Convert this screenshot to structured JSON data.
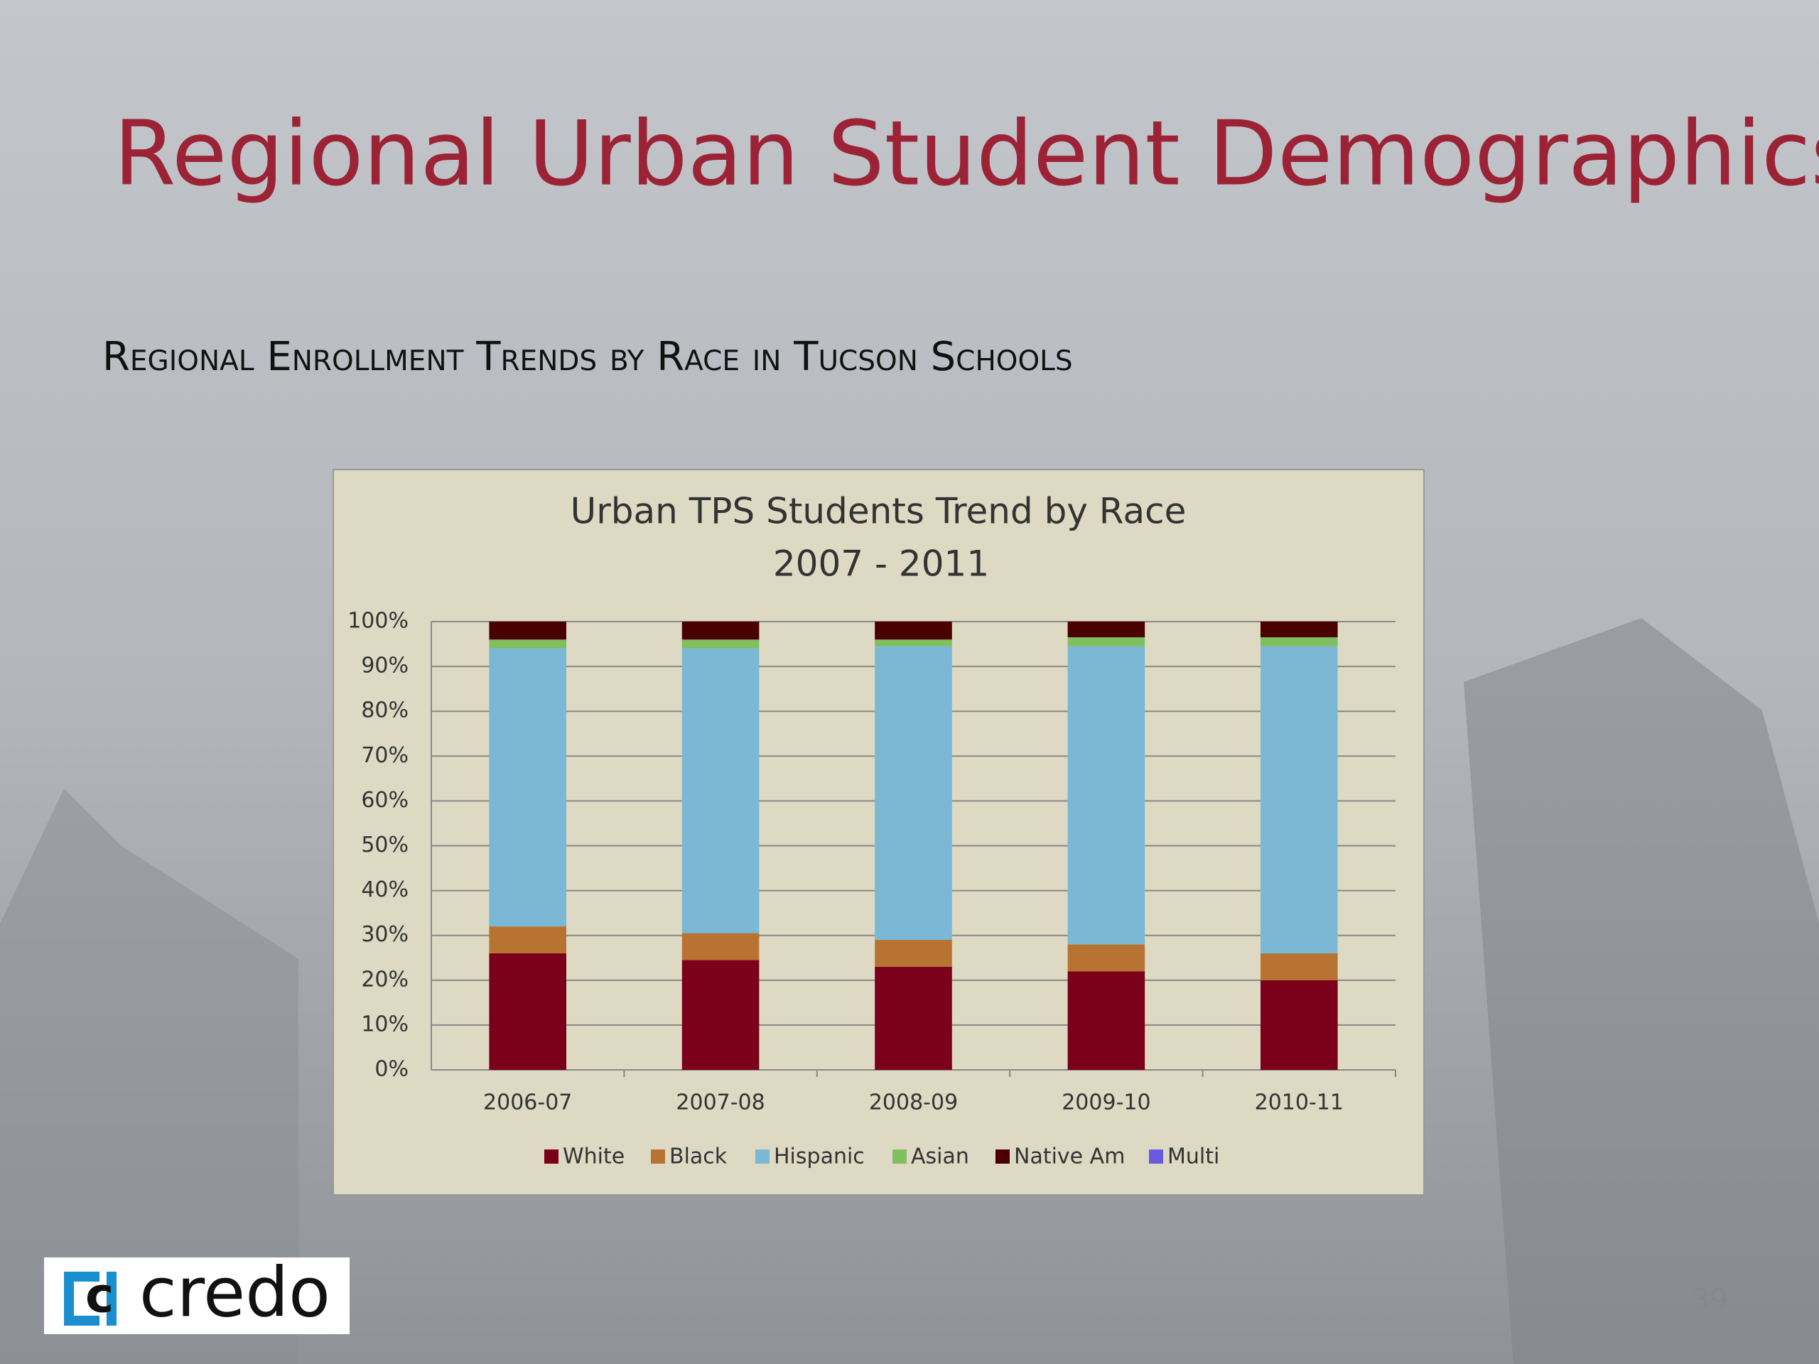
{
  "slide": {
    "title": "Regional Urban Student Demographics",
    "subtitle": "Regional Enrollment Trends by Race in Tucson Schools",
    "logo": "credo",
    "page_number": "39"
  },
  "chart_data": {
    "type": "stacked_bar",
    "title": "Urban TPS Students Trend by Race",
    "subtitle": "2007 - 2011",
    "categories": [
      "2006-07",
      "2007-08",
      "2008-09",
      "2009-10",
      "2010-11"
    ],
    "series": [
      {
        "name": "White",
        "color": "#7b0019",
        "values": [
          26,
          24.5,
          23,
          22,
          20
        ]
      },
      {
        "name": "Black",
        "color": "#b87333",
        "values": [
          6,
          6,
          6,
          6,
          6
        ]
      },
      {
        "name": "Hispanic",
        "color": "#7ab8d6",
        "values": [
          62,
          63.5,
          65.5,
          66.5,
          68.5
        ]
      },
      {
        "name": "Asian",
        "color": "#7fbf5f",
        "values": [
          2,
          2,
          1.5,
          2,
          2
        ]
      },
      {
        "name": "Native Am",
        "color": "#4a0000",
        "values": [
          4,
          4,
          4,
          3.5,
          3.5
        ]
      },
      {
        "name": "Multi",
        "color": "#6a5ae0",
        "values": [
          0,
          0,
          0,
          0,
          0
        ]
      }
    ],
    "ylim": [
      0,
      100
    ],
    "yticks": [
      {
        "value": 0,
        "label": "0%"
      },
      {
        "value": 10,
        "label": "10%"
      },
      {
        "value": 20,
        "label": "20%"
      },
      {
        "value": 30,
        "label": "30%"
      },
      {
        "value": 40,
        "label": "40%"
      },
      {
        "value": 50,
        "label": "50%"
      },
      {
        "value": 60,
        "label": "60%"
      },
      {
        "value": 70,
        "label": "70%"
      },
      {
        "value": 80,
        "label": "80%"
      },
      {
        "value": 90,
        "label": "90%"
      },
      {
        "value": 100,
        "label": "100%"
      }
    ],
    "grid": true,
    "legend": "bottom"
  }
}
